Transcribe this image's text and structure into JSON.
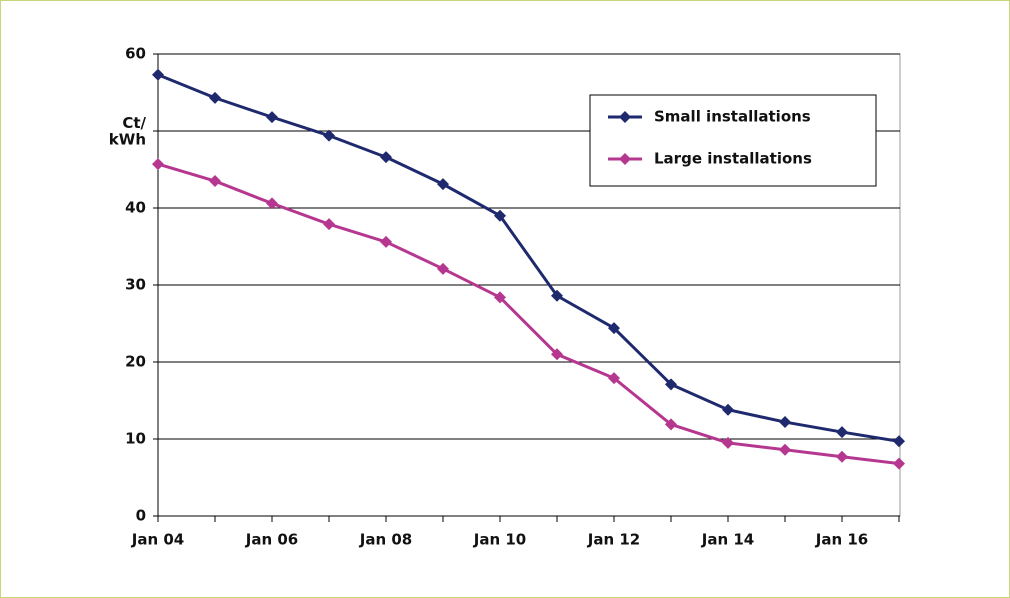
{
  "chart_data": {
    "type": "line",
    "categories": [
      "Jan 04",
      null,
      "Jan 06",
      null,
      "Jan 08",
      null,
      "Jan 10",
      null,
      "Jan 12",
      null,
      "Jan 14",
      null,
      "Jan 16",
      null
    ],
    "series": [
      {
        "name": "Small installations",
        "color": "#1f2a6e",
        "values": [
          57.3,
          54.3,
          51.8,
          49.4,
          46.6,
          43.1,
          39.0,
          28.6,
          24.4,
          17.1,
          13.8,
          12.2,
          10.9,
          9.7
        ]
      },
      {
        "name": "Large installations",
        "color": "#b5378f",
        "values": [
          45.7,
          43.5,
          40.6,
          37.9,
          35.6,
          32.1,
          28.4,
          21.0,
          17.9,
          11.9,
          9.5,
          8.6,
          7.7,
          6.8
        ]
      }
    ],
    "ylim": [
      0,
      60
    ],
    "yticks": [
      0,
      10,
      20,
      30,
      40,
      {
        "value": 50,
        "label": "Ct/\nkWh"
      },
      60
    ],
    "grid": true,
    "legend": "upper right"
  }
}
